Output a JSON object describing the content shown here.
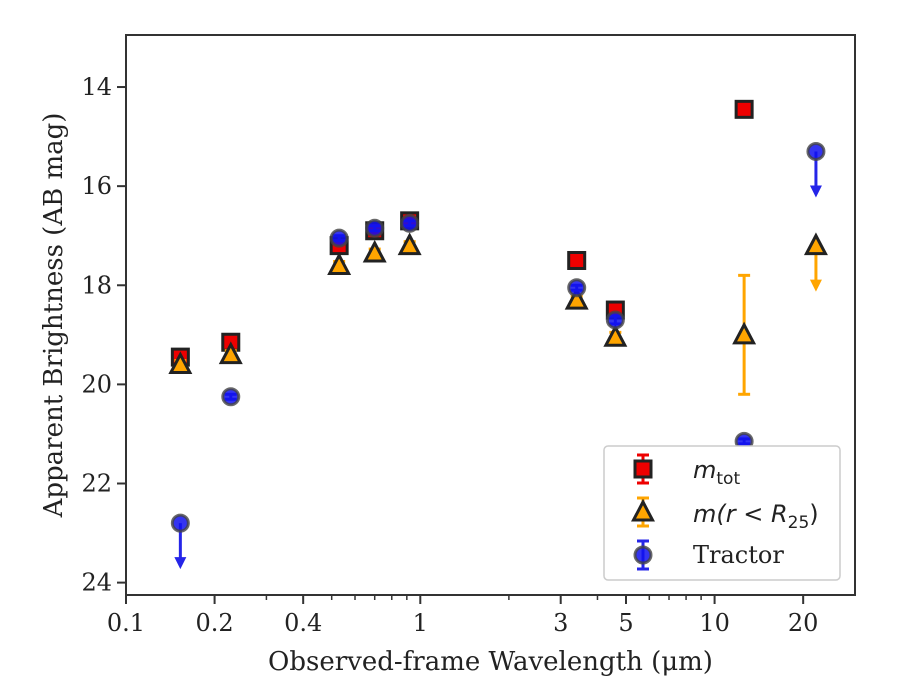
{
  "chart_data": {
    "type": "scatter",
    "xlabel": "Observed-frame Wavelength (μm)",
    "ylabel": "Apparent Brightness (AB mag)",
    "x_scale": "log",
    "xlim": [
      0.1,
      30
    ],
    "ylim": [
      24.25,
      12.95
    ],
    "y_inverted": true,
    "grid": false,
    "legend_position": "bottom-right",
    "x_ticks": [
      {
        "value": 0.1,
        "label": "0.1"
      },
      {
        "value": 0.2,
        "label": "0.2"
      },
      {
        "value": 0.4,
        "label": "0.4"
      },
      {
        "value": 1,
        "label": "1"
      },
      {
        "value": 3,
        "label": "3"
      },
      {
        "value": 5,
        "label": "5"
      },
      {
        "value": 10,
        "label": "10"
      },
      {
        "value": 20,
        "label": "20"
      }
    ],
    "y_ticks": [
      {
        "value": 14,
        "label": "14"
      },
      {
        "value": 16,
        "label": "16"
      },
      {
        "value": 18,
        "label": "18"
      },
      {
        "value": 20,
        "label": "20"
      },
      {
        "value": 22,
        "label": "22"
      },
      {
        "value": 24,
        "label": "24"
      }
    ],
    "series": [
      {
        "name": "m_tot",
        "label_base": "m",
        "label_sub": "tot",
        "marker": "square",
        "color": "#ee0000",
        "edge_color": "#222222",
        "points": [
          {
            "x": 0.153,
            "y": 19.45,
            "err": 0.1
          },
          {
            "x": 0.227,
            "y": 19.15,
            "err": 0.08
          },
          {
            "x": 0.53,
            "y": 17.2,
            "err": 0.1
          },
          {
            "x": 0.7,
            "y": 16.9,
            "err": 0.08
          },
          {
            "x": 0.92,
            "y": 16.7,
            "err": 0.07
          },
          {
            "x": 3.4,
            "y": 17.5,
            "err": 0.08
          },
          {
            "x": 4.6,
            "y": 18.5,
            "err": 0.1
          },
          {
            "x": 12.6,
            "y": 14.45,
            "err": 0.1
          }
        ]
      },
      {
        "name": "m(r < R25)",
        "label_main": "m(r < R",
        "label_sub": "25",
        "label_end": ")",
        "marker": "triangle",
        "color": "#ffa500",
        "edge_color": "#222222",
        "points": [
          {
            "x": 0.153,
            "y": 19.6,
            "err": 0.08
          },
          {
            "x": 0.227,
            "y": 19.4,
            "err": 0.08
          },
          {
            "x": 0.53,
            "y": 17.6,
            "err": 0.08
          },
          {
            "x": 0.7,
            "y": 17.35,
            "err": 0.08
          },
          {
            "x": 0.92,
            "y": 17.2,
            "err": 0.08
          },
          {
            "x": 3.4,
            "y": 18.3,
            "err": 0.08
          },
          {
            "x": 4.6,
            "y": 19.05,
            "err": 0.1
          },
          {
            "x": 12.6,
            "y": 19.0,
            "err": 1.2
          },
          {
            "x": 22.1,
            "y": 17.2,
            "upper_limit": true
          }
        ]
      },
      {
        "name": "Tractor",
        "marker": "circle",
        "color": "#1010ee",
        "edge_color": "#444444",
        "points": [
          {
            "x": 0.153,
            "y": 22.8,
            "upper_limit": true
          },
          {
            "x": 0.227,
            "y": 20.25,
            "err": 0.05
          },
          {
            "x": 0.53,
            "y": 17.05,
            "err": 0.05
          },
          {
            "x": 0.7,
            "y": 16.85,
            "err": 0.05
          },
          {
            "x": 0.92,
            "y": 16.75,
            "err": 0.05
          },
          {
            "x": 3.4,
            "y": 18.05,
            "err": 0.05
          },
          {
            "x": 4.6,
            "y": 18.7,
            "err": 0.08
          },
          {
            "x": 12.6,
            "y": 21.15,
            "err": 0.05
          },
          {
            "x": 22.1,
            "y": 15.3,
            "upper_limit": true
          }
        ]
      }
    ]
  }
}
